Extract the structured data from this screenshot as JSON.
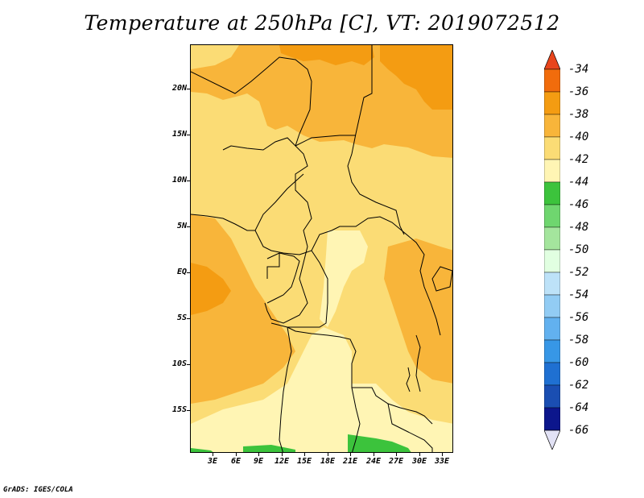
{
  "title": "Temperature at 250hPa [C], VT: 2019072512",
  "footer": "GrADS: IGES/COLA",
  "map": {
    "y_axis_labels": [
      "20N",
      "15N",
      "10N",
      "5N",
      "EQ",
      "5S",
      "10S",
      "15S"
    ],
    "x_axis_labels": [
      "3E",
      "6E",
      "9E",
      "12E",
      "15E",
      "18E",
      "21E",
      "24E",
      "27E",
      "30E",
      "33E"
    ],
    "lat_range": [
      -19.7,
      24.2
    ],
    "lon_range": [
      0.2,
      34.2
    ]
  },
  "colorbar": {
    "labels": [
      "-34",
      "-36",
      "-38",
      "-40",
      "-42",
      "-44",
      "-46",
      "-48",
      "-50",
      "-52",
      "-54",
      "-56",
      "-58",
      "-60",
      "-62",
      "-64",
      "-66"
    ],
    "colors": [
      "#e8451c",
      "#f16c0c",
      "#f49c12",
      "#f8b53a",
      "#fbdc75",
      "#fff5b4",
      "#3cc33c",
      "#6fd66f",
      "#a4e59d",
      "#e1ffe1",
      "#bde2f8",
      "#92ccf4",
      "#62b1ef",
      "#3797e6",
      "#1f70d2",
      "#1a4eb2",
      "#0c168c",
      "#e2e2f5"
    ]
  }
}
